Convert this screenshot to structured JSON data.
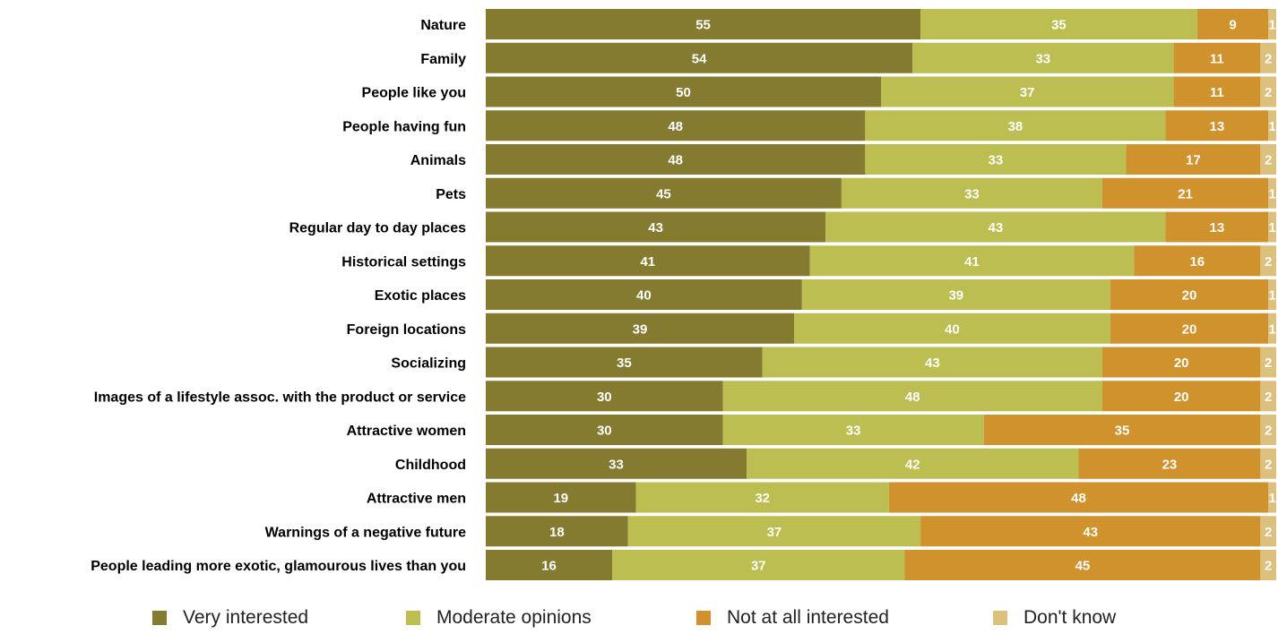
{
  "chart_data": {
    "type": "bar",
    "orientation": "horizontal",
    "stacked": true,
    "categories": [
      "Nature",
      "Family",
      "People like you",
      "People having fun",
      "Animals",
      "Pets",
      "Regular day to day places",
      "Historical settings",
      "Exotic places",
      "Foreign locations",
      "Socializing",
      "Images of a lifestyle assoc. with the product or service",
      "Attractive women",
      "Childhood",
      "Attractive men",
      "Warnings of a negative future",
      "People leading more exotic, glamourous lives than you"
    ],
    "series": [
      {
        "name": "Very interested",
        "color": "#847b31",
        "values": [
          55,
          54,
          50,
          48,
          48,
          45,
          43,
          41,
          40,
          39,
          35,
          30,
          30,
          33,
          19,
          18,
          16
        ]
      },
      {
        "name": "Moderate opinions",
        "color": "#bcbe52",
        "values": [
          35,
          33,
          37,
          38,
          33,
          33,
          43,
          41,
          39,
          40,
          43,
          48,
          33,
          42,
          32,
          37,
          37
        ]
      },
      {
        "name": "Not at all interested",
        "color": "#d0922c",
        "values": [
          9,
          11,
          11,
          13,
          17,
          21,
          13,
          16,
          20,
          20,
          20,
          20,
          35,
          23,
          48,
          43,
          45
        ]
      },
      {
        "name": "Don't know",
        "color": "#dcc07e",
        "values": [
          1,
          2,
          2,
          1,
          2,
          1,
          1,
          2,
          1,
          1,
          2,
          2,
          2,
          2,
          1,
          2,
          2
        ]
      }
    ],
    "xlim": [
      0,
      100
    ],
    "grid": false,
    "legend_position": "bottom"
  }
}
